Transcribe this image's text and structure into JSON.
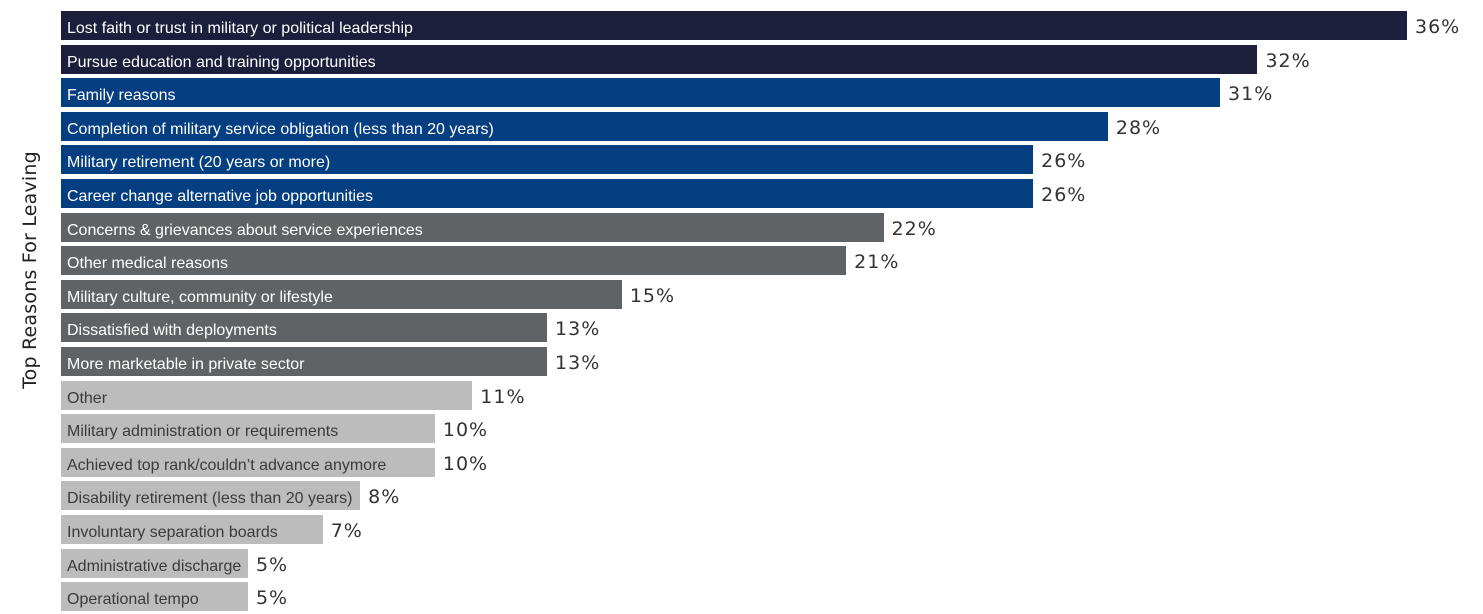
{
  "chart_data": {
    "type": "bar",
    "orientation": "horizontal",
    "title": "",
    "xlabel": "",
    "ylabel": "Top Reasons For Leaving",
    "value_suffix": "%",
    "categories": [
      "Lost faith or trust in military or political leadership",
      "Pursue education and training opportunities",
      "Family reasons",
      "Completion of military service obligation (less than 20 years)",
      "Military retirement (20 years or more)",
      "Career change alternative job opportunities",
      "Concerns & grievances about service experiences",
      "Other medical reasons",
      "Military culture, community or lifestyle",
      "Dissatisfied with deployments",
      "More marketable in private sector",
      "Other",
      "Military administration or requirements",
      "Achieved top rank/couldn’t advance anymore",
      "Disability retirement (less than 20 years)",
      "Involuntary separation boards",
      "Administrative discharge",
      "Operational tempo"
    ],
    "values": [
      36,
      32,
      31,
      28,
      26,
      26,
      22,
      21,
      15,
      13,
      13,
      11,
      10,
      10,
      8,
      7,
      5,
      5
    ],
    "value_labels": [
      "36%",
      "32%",
      "31%",
      "28%",
      "26%",
      "26%",
      "22%",
      "21%",
      "15%",
      "13%",
      "13%",
      "11%",
      "10%",
      "10%",
      "8%",
      "7%",
      "5%",
      "5%"
    ],
    "xlim": [
      0,
      36
    ],
    "grid": false,
    "legend": "none",
    "bar_colors": [
      "#1c1f3c",
      "#1c1f3c",
      "#053f81",
      "#053f81",
      "#053f81",
      "#053f81",
      "#5f6366",
      "#5f6366",
      "#5f6366",
      "#5f6366",
      "#5f6366",
      "#bcbcbc",
      "#bcbcbc",
      "#bcbcbc",
      "#bcbcbc",
      "#bcbcbc",
      "#bcbcbc",
      "#bcbcbc"
    ],
    "label_colors": [
      "#ffffff",
      "#ffffff",
      "#ffffff",
      "#ffffff",
      "#ffffff",
      "#ffffff",
      "#ffffff",
      "#ffffff",
      "#ffffff",
      "#ffffff",
      "#ffffff",
      "#3a3a3a",
      "#3a3a3a",
      "#3a3a3a",
      "#3a3a3a",
      "#3a3a3a",
      "#3a3a3a",
      "#3a3a3a"
    ]
  }
}
